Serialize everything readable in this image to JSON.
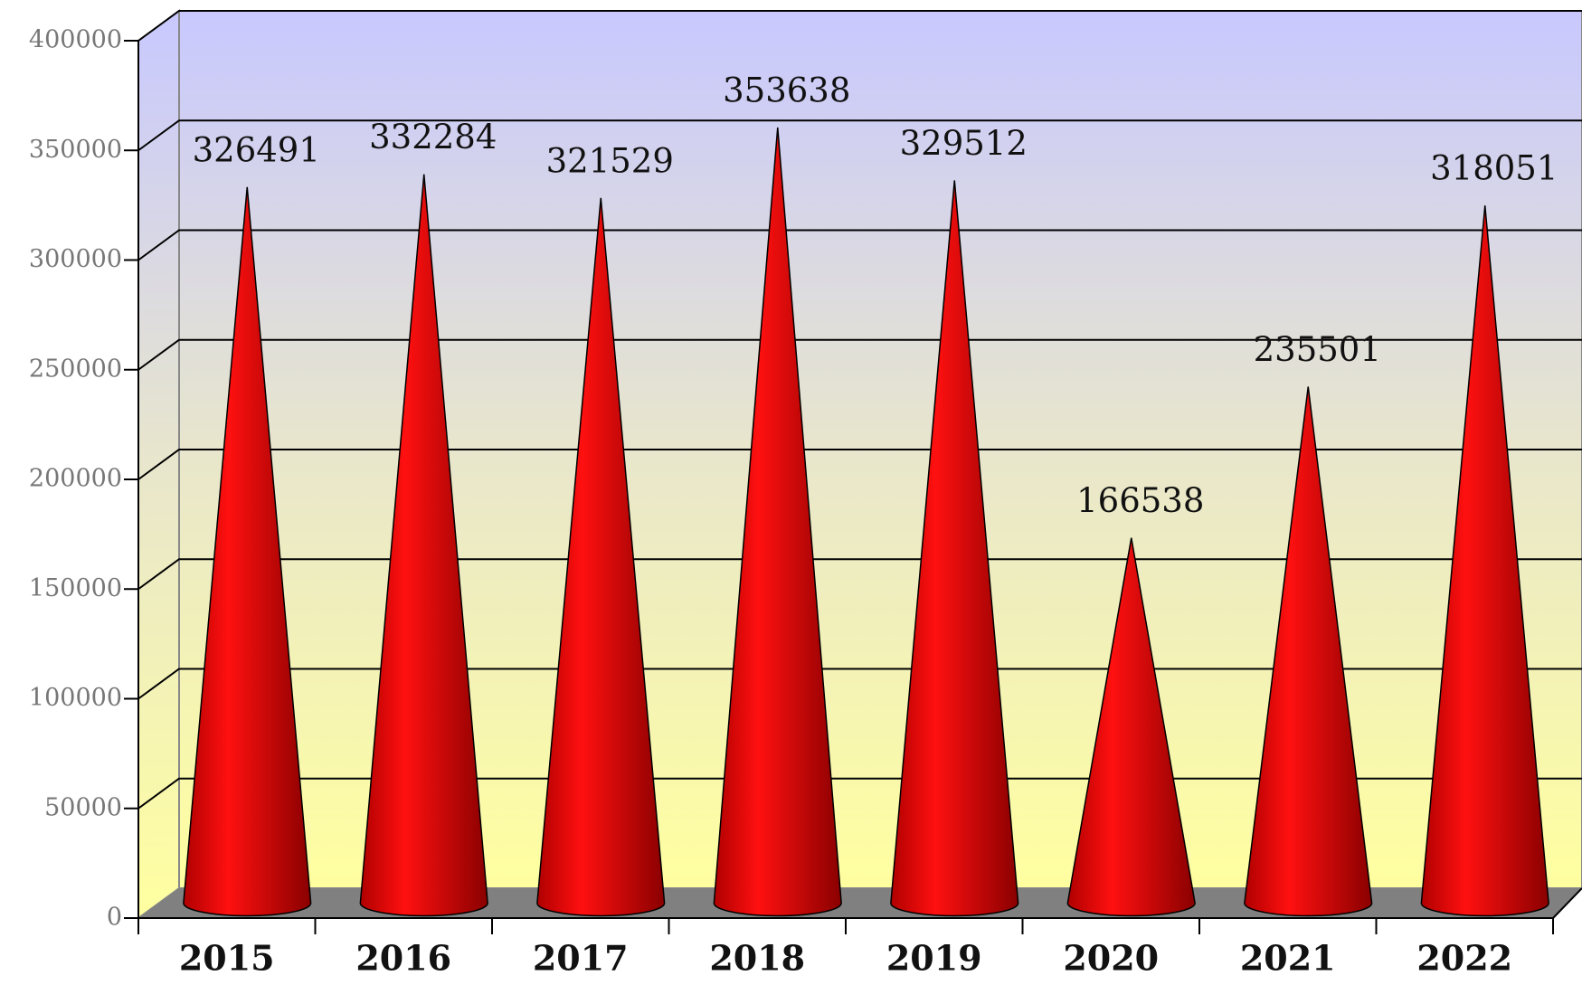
{
  "chart_data": {
    "type": "cone",
    "categories": [
      "2015",
      "2016",
      "2017",
      "2018",
      "2019",
      "2020",
      "2021",
      "2022"
    ],
    "values": [
      326491,
      332284,
      321529,
      353638,
      329512,
      166538,
      235501,
      318051
    ],
    "color": "#ff0000",
    "ylim": [
      0,
      400000
    ],
    "yticks": [
      0,
      50000,
      100000,
      150000,
      200000,
      250000,
      300000,
      350000,
      400000
    ],
    "grid": true
  }
}
